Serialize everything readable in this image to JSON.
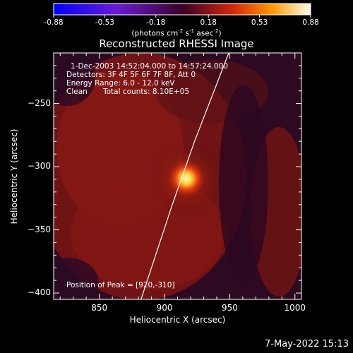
{
  "chart_data": {
    "type": "heatmap",
    "title": "Reconstructed RHESSI Image",
    "xlabel": "Heliocentric X (arcsec)",
    "ylabel": "Heliocentric Y (arcsec)",
    "xlim": [
      815,
      1005
    ],
    "ylim": [
      -405,
      -210
    ],
    "x_ticks": [
      850,
      900,
      950,
      1000
    ],
    "y_ticks": [
      -250,
      -300,
      -350,
      -400
    ],
    "colorbar": {
      "range": [
        -0.88,
        0.88
      ],
      "ticks": [
        "-0.88",
        "-0.53",
        "-0.18",
        "0.18",
        "0.53",
        "0.88"
      ],
      "unit_text": "(photons cm",
      "unit_exp1": "-2",
      "unit_mid": " s",
      "unit_exp2": "-1",
      "unit_mid2": " asec",
      "unit_exp3": "-2",
      "unit_end": ")"
    },
    "annotations": {
      "time_range": "1-Dec-2003 14:52:04.000 to 14:57:24.000",
      "detectors": "Detectors: 3F 4F 5F 6F 7F 8F, Att 0",
      "energy": "Energy Range: 6.0 - 12.0 keV",
      "method": "Clean",
      "counts": "Total counts: 8.10E+05",
      "peak": "Position of Peak = [920,-310]"
    },
    "peak": {
      "x": 920,
      "y": -310
    },
    "limb_line": [
      [
        882,
        -405
      ],
      [
        906,
        -330
      ],
      [
        923,
        -280
      ],
      [
        938,
        -240
      ],
      [
        953,
        -200
      ]
    ]
  },
  "footer": {
    "timestamp": "7-May-2022 15:13"
  }
}
